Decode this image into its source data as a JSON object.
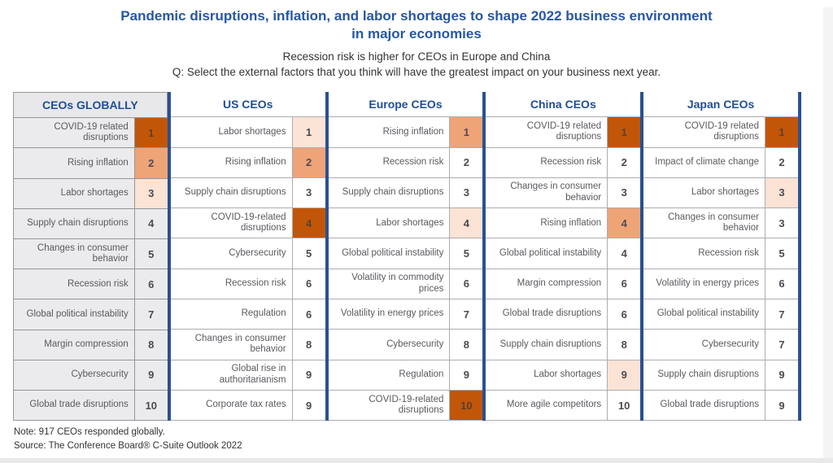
{
  "figure": {
    "title": "Pandemic disruptions, inflation, and labor shortages to shape 2022 business environment in major economies",
    "subtitle": "Recession risk is higher for CEOs in Europe and China",
    "question": "Q: Select the external factors that you think will have the greatest impact on your business next year.",
    "note": "Note: 917 CEOs responded globally.",
    "source": "Source: The Conference Board® C-Suite Outlook 2022"
  },
  "colors": {
    "title_blue": "#2557A6",
    "header_blue": "#1E4E9A",
    "divider_blue": "#2A5191",
    "rank_dark_orange": "#C25608",
    "rank_medium_orange": "#EFA477",
    "rank_light_peach": "#FBE3D5",
    "global_column_gray": "#EBEBED"
  },
  "chart_data": {
    "type": "table",
    "title": "Ranking of external factors with greatest expected impact on business next year, by CEO region",
    "highlight_legend": {
      "dark": "COVID-19 related disruptions",
      "medium": "Rising inflation",
      "light": "Labor shortages"
    },
    "columns": [
      {
        "name": "CEOs GLOBALLY",
        "highlight_header": true,
        "rows": [
          {
            "factor": "COVID-19 related disruptions",
            "rank": "1",
            "tone": "dark"
          },
          {
            "factor": "Rising inflation",
            "rank": "2",
            "tone": "medium"
          },
          {
            "factor": "Labor shortages",
            "rank": "3",
            "tone": "light"
          },
          {
            "factor": "Supply chain disruptions",
            "rank": "4",
            "tone": "none"
          },
          {
            "factor": "Changes in consumer behavior",
            "rank": "5",
            "tone": "none"
          },
          {
            "factor": "Recession risk",
            "rank": "6",
            "tone": "none"
          },
          {
            "factor": "Global political instability",
            "rank": "7",
            "tone": "none"
          },
          {
            "factor": "Margin compression",
            "rank": "8",
            "tone": "none"
          },
          {
            "factor": "Cybersecurity",
            "rank": "9",
            "tone": "none"
          },
          {
            "factor": "Global trade disruptions",
            "rank": "10",
            "tone": "none"
          }
        ]
      },
      {
        "name": "US CEOs",
        "highlight_header": false,
        "rows": [
          {
            "factor": "Labor shortages",
            "rank": "1",
            "tone": "light"
          },
          {
            "factor": "Rising inflation",
            "rank": "2",
            "tone": "medium"
          },
          {
            "factor": "Supply chain disruptions",
            "rank": "3",
            "tone": "none"
          },
          {
            "factor": "COVID-19-related disruptions",
            "rank": "4",
            "tone": "dark"
          },
          {
            "factor": "Cybersecurity",
            "rank": "5",
            "tone": "none"
          },
          {
            "factor": "Recession risk",
            "rank": "6",
            "tone": "none"
          },
          {
            "factor": "Regulation",
            "rank": "6",
            "tone": "none"
          },
          {
            "factor": "Changes in consumer behavior",
            "rank": "8",
            "tone": "none"
          },
          {
            "factor": "Global rise in authoritarianism",
            "rank": "9",
            "tone": "none"
          },
          {
            "factor": "Corporate tax rates",
            "rank": "9",
            "tone": "none"
          }
        ]
      },
      {
        "name": "Europe CEOs",
        "highlight_header": false,
        "rows": [
          {
            "factor": "Rising inflation",
            "rank": "1",
            "tone": "medium"
          },
          {
            "factor": "Recession risk",
            "rank": "2",
            "tone": "none"
          },
          {
            "factor": "Supply chain disruptions",
            "rank": "3",
            "tone": "none"
          },
          {
            "factor": "Labor shortages",
            "rank": "4",
            "tone": "light"
          },
          {
            "factor": "Global political instability",
            "rank": "5",
            "tone": "none"
          },
          {
            "factor": "Volatility in commodity prices",
            "rank": "6",
            "tone": "none"
          },
          {
            "factor": "Volatility in energy prices",
            "rank": "7",
            "tone": "none"
          },
          {
            "factor": "Cybersecurity",
            "rank": "8",
            "tone": "none"
          },
          {
            "factor": "Regulation",
            "rank": "9",
            "tone": "none"
          },
          {
            "factor": "COVID-19-related disruptions",
            "rank": "10",
            "tone": "dark"
          }
        ]
      },
      {
        "name": "China CEOs",
        "highlight_header": false,
        "rows": [
          {
            "factor": "COVID-19 related disruptions",
            "rank": "1",
            "tone": "dark"
          },
          {
            "factor": "Recession risk",
            "rank": "2",
            "tone": "none"
          },
          {
            "factor": "Changes in consumer behavior",
            "rank": "3",
            "tone": "none"
          },
          {
            "factor": "Rising inflation",
            "rank": "4",
            "tone": "medium"
          },
          {
            "factor": "Global political instability",
            "rank": "4",
            "tone": "none"
          },
          {
            "factor": "Margin compression",
            "rank": "6",
            "tone": "none"
          },
          {
            "factor": "Global trade disruptions",
            "rank": "6",
            "tone": "none"
          },
          {
            "factor": "Supply chain disruptions",
            "rank": "8",
            "tone": "none"
          },
          {
            "factor": "Labor shortages",
            "rank": "9",
            "tone": "light"
          },
          {
            "factor": "More agile competitors",
            "rank": "10",
            "tone": "none"
          }
        ]
      },
      {
        "name": "Japan CEOs",
        "highlight_header": false,
        "rows": [
          {
            "factor": "COVID-19 related disruptions",
            "rank": "1",
            "tone": "dark"
          },
          {
            "factor": "Impact of climate change",
            "rank": "2",
            "tone": "none"
          },
          {
            "factor": "Labor shortages",
            "rank": "3",
            "tone": "light"
          },
          {
            "factor": "Changes in consumer behavior",
            "rank": "3",
            "tone": "none"
          },
          {
            "factor": "Recession risk",
            "rank": "5",
            "tone": "none"
          },
          {
            "factor": "Volatility in energy prices",
            "rank": "6",
            "tone": "none"
          },
          {
            "factor": "Global political instability",
            "rank": "7",
            "tone": "none"
          },
          {
            "factor": "Cybersecurity",
            "rank": "7",
            "tone": "none"
          },
          {
            "factor": "Supply chain disruptions",
            "rank": "9",
            "tone": "none"
          },
          {
            "factor": "Global trade disruptions",
            "rank": "9",
            "tone": "none"
          }
        ]
      }
    ]
  }
}
